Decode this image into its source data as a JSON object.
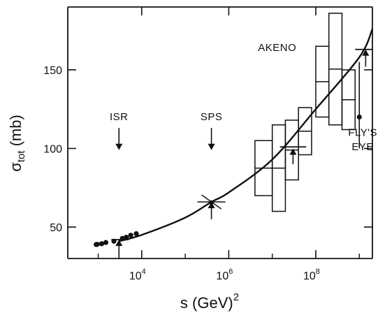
{
  "chart_data": {
    "type": "scatter",
    "title": "",
    "xlabel": {
      "prefix": "s (GeV)",
      "exponent": "2"
    },
    "ylabel": {
      "prefix": "σ",
      "subscript": "tot",
      "suffix": " (mb)"
    },
    "x_scale": "log",
    "xlim": [
      200,
      2000000000
    ],
    "ylim": [
      30,
      190
    ],
    "x_ticks": [
      {
        "value": 10000,
        "base": "10",
        "exp": "4"
      },
      {
        "value": 1000000,
        "base": "10",
        "exp": "6"
      },
      {
        "value": 100000000,
        "base": "10",
        "exp": "8"
      }
    ],
    "y_ticks": [
      {
        "value": 50,
        "label": "50"
      },
      {
        "value": 100,
        "label": "100"
      },
      {
        "value": 150,
        "label": "150"
      }
    ],
    "grid": false,
    "legend": "none",
    "series": [
      {
        "type": "points",
        "points": [
          {
            "x": 900,
            "y": 38.9
          },
          {
            "x": 950,
            "y": 39.0
          },
          {
            "x": 1200,
            "y": 39.4
          },
          {
            "x": 1500,
            "y": 40.2
          },
          {
            "x": 2300,
            "y": 41.0
          },
          {
            "x": 3600,
            "y": 42.8
          },
          {
            "x": 4400,
            "y": 43.5
          },
          {
            "x": 5600,
            "y": 44.8
          },
          {
            "x": 7500,
            "y": 45.8
          },
          {
            "x": 1000000000,
            "y": 120
          }
        ]
      },
      {
        "type": "fit-curve",
        "x": [
          3000,
          10000,
          100000,
          400000,
          1000000,
          10000000,
          100000000,
          1000000000,
          2000000000
        ],
        "y": [
          41,
          45,
          56,
          66,
          72,
          93,
          125,
          158,
          176
        ]
      },
      {
        "type": "boxes",
        "boxes": [
          {
            "x_from": 4000000,
            "x_to": 10000000,
            "y_from": 70,
            "y_to": 105
          },
          {
            "x_from": 10000000,
            "x_to": 20000000,
            "y_from": 60,
            "y_to": 115
          },
          {
            "x_from": 20000000,
            "x_to": 40000000,
            "y_from": 80,
            "y_to": 118
          },
          {
            "x_from": 40000000,
            "x_to": 80000000,
            "y_from": 96,
            "y_to": 126
          },
          {
            "x_from": 100000000,
            "x_to": 200000000,
            "y_from": 120,
            "y_to": 165
          },
          {
            "x_from": 200000000,
            "x_to": 400000000,
            "y_from": 115,
            "y_to": 186
          },
          {
            "x_from": 400000000,
            "x_to": 800000000,
            "y_from": 112,
            "y_to": 150
          }
        ]
      },
      {
        "type": "limit-arrows",
        "arrows": [
          {
            "x": 3000,
            "y_low": 30,
            "y_high": 42
          },
          {
            "x": 400000,
            "y_low": 55,
            "y_high": 66
          },
          {
            "x": 30000000,
            "y_low": 90,
            "y_high": 100
          },
          {
            "x": 1400000000,
            "y_low": 152,
            "y_high": 163
          }
        ]
      },
      {
        "type": "error-bars",
        "bars": [
          {
            "x": 3000,
            "y": 42,
            "x_lo": 2000,
            "x_hi": 5000
          },
          {
            "x": 30000000,
            "y": 101,
            "x_lo": 15000000,
            "x_hi": 60000000
          },
          {
            "x": 1400000000,
            "y": 163,
            "x_lo": 800000000,
            "x_hi": 2000000000
          },
          {
            "x": 1000000000,
            "y": 120,
            "y_lo": 100,
            "y_hi": 155
          }
        ]
      }
    ],
    "annotations": [
      {
        "text": "ISR",
        "x": 3000,
        "y": 118
      },
      {
        "text": "SPS",
        "x": 400000,
        "y": 118
      },
      {
        "text": "AKENO",
        "x": 13000000,
        "y": 162
      },
      {
        "text": "FLY'S",
        "x": 1200000000,
        "y": 108
      },
      {
        "text": "EYE",
        "x": 1200000000,
        "y": 99
      }
    ],
    "annotation_arrows": [
      {
        "x": 3000,
        "y_from": 113,
        "y_to": 99
      },
      {
        "x": 400000,
        "y_from": 113,
        "y_to": 99
      }
    ]
  }
}
